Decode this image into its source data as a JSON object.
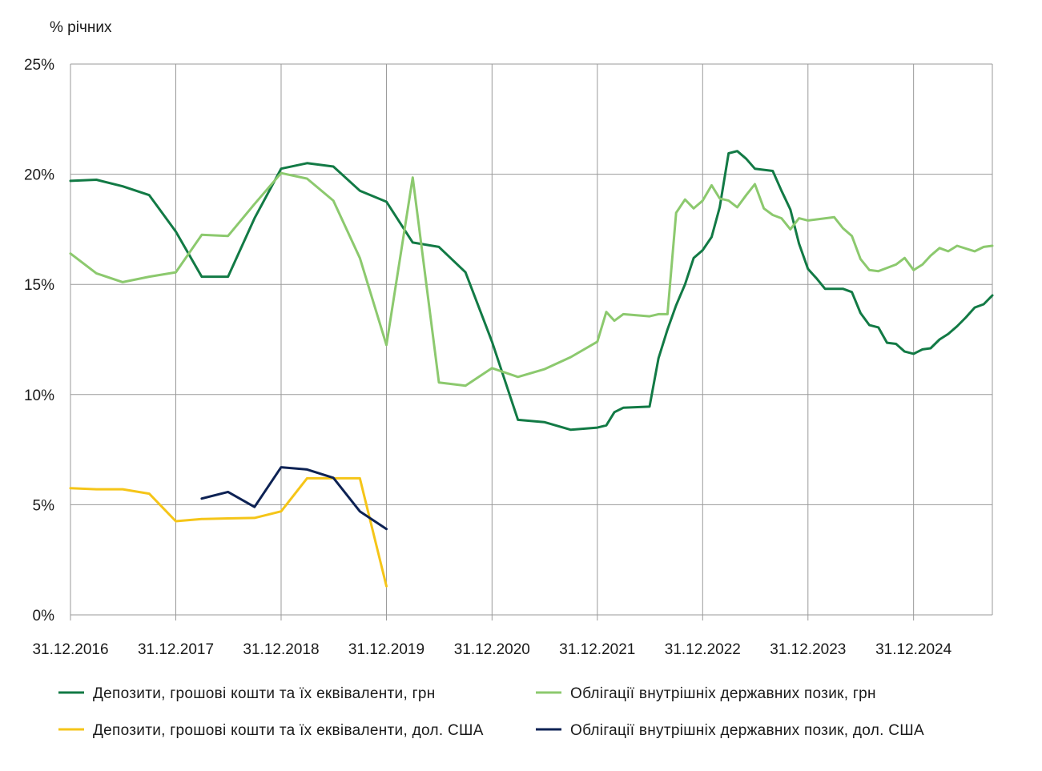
{
  "chart_data": {
    "type": "line",
    "ylabel": "% річних",
    "ylim": [
      0,
      25
    ],
    "xlim": [
      "31.12.2016",
      "30.09.2025"
    ],
    "grid": true,
    "legend": "bottom",
    "y_ticks": [
      "0%",
      "5%",
      "10%",
      "15%",
      "20%",
      "25%"
    ],
    "x_ticks": [
      "31.12.2016",
      "31.12.2017",
      "31.12.2018",
      "31.12.2019",
      "31.12.2020",
      "31.12.2021",
      "31.12.2022",
      "31.12.2023",
      "31.12.2024"
    ],
    "series": [
      {
        "name": "Депозити, грошові кошти та їх еквіваленти, грн",
        "color": "#127a45",
        "points": [
          [
            "31.12.2016",
            19.7
          ],
          [
            "31.03.2017",
            19.75
          ],
          [
            "30.06.2017",
            19.45
          ],
          [
            "30.09.2017",
            19.05
          ],
          [
            "31.12.2017",
            17.4
          ],
          [
            "31.03.2018",
            15.35
          ],
          [
            "30.06.2018",
            15.35
          ],
          [
            "30.09.2018",
            18.0
          ],
          [
            "31.12.2018",
            20.25
          ],
          [
            "31.03.2019",
            20.5
          ],
          [
            "30.06.2019",
            20.35
          ],
          [
            "30.09.2019",
            19.25
          ],
          [
            "31.12.2019",
            18.75
          ],
          [
            "31.03.2020",
            16.9
          ],
          [
            "30.06.2020",
            16.7
          ],
          [
            "30.09.2020",
            15.55
          ],
          [
            "31.12.2020",
            12.4
          ],
          [
            "31.03.2021",
            8.85
          ],
          [
            "30.06.2021",
            8.75
          ],
          [
            "30.09.2021",
            8.4
          ],
          [
            "31.12.2021",
            8.5
          ],
          [
            "31.01.2022",
            8.6
          ],
          [
            "28.02.2022",
            9.2
          ],
          [
            "31.03.2022",
            9.4
          ],
          [
            "30.06.2022",
            9.45
          ],
          [
            "31.07.2022",
            11.65
          ],
          [
            "31.08.2022",
            12.95
          ],
          [
            "30.09.2022",
            14.05
          ],
          [
            "31.10.2022",
            15.0
          ],
          [
            "30.11.2022",
            16.2
          ],
          [
            "31.12.2022",
            16.55
          ],
          [
            "31.01.2023",
            17.15
          ],
          [
            "28.02.2023",
            18.5
          ],
          [
            "31.03.2023",
            20.95
          ],
          [
            "30.04.2023",
            21.05
          ],
          [
            "31.05.2023",
            20.7
          ],
          [
            "30.06.2023",
            20.25
          ],
          [
            "31.08.2023",
            20.15
          ],
          [
            "30.09.2023",
            19.25
          ],
          [
            "31.10.2023",
            18.4
          ],
          [
            "30.11.2023",
            16.85
          ],
          [
            "31.12.2023",
            15.7
          ],
          [
            "31.01.2024",
            15.25
          ],
          [
            "28.02.2024",
            14.8
          ],
          [
            "31.03.2024",
            14.8
          ],
          [
            "30.04.2024",
            14.8
          ],
          [
            "31.05.2024",
            14.65
          ],
          [
            "30.06.2024",
            13.7
          ],
          [
            "31.07.2024",
            13.15
          ],
          [
            "31.08.2024",
            13.05
          ],
          [
            "30.09.2024",
            12.35
          ],
          [
            "31.10.2024",
            12.3
          ],
          [
            "30.11.2024",
            11.95
          ],
          [
            "31.12.2024",
            11.85
          ],
          [
            "31.01.2025",
            12.05
          ],
          [
            "28.02.2025",
            12.1
          ],
          [
            "31.03.2025",
            12.5
          ],
          [
            "30.04.2025",
            12.75
          ],
          [
            "31.05.2025",
            13.1
          ],
          [
            "30.06.2025",
            13.5
          ],
          [
            "31.07.2025",
            13.95
          ],
          [
            "31.08.2025",
            14.1
          ],
          [
            "30.09.2025",
            14.5
          ]
        ]
      },
      {
        "name": "Облігації внутрішніх державних позик, грн",
        "color": "#8cc96e",
        "points": [
          [
            "31.12.2016",
            16.4
          ],
          [
            "31.03.2017",
            15.5
          ],
          [
            "30.06.2017",
            15.1
          ],
          [
            "30.09.2017",
            15.35
          ],
          [
            "31.12.2017",
            15.55
          ],
          [
            "31.03.2018",
            17.25
          ],
          [
            "30.06.2018",
            17.2
          ],
          [
            "30.09.2018",
            18.65
          ],
          [
            "31.12.2018",
            20.05
          ],
          [
            "31.03.2019",
            19.8
          ],
          [
            "30.06.2019",
            18.8
          ],
          [
            "30.09.2019",
            16.2
          ],
          [
            "31.12.2019",
            12.25
          ],
          [
            "31.03.2020",
            19.85
          ],
          [
            "30.06.2020",
            10.55
          ],
          [
            "30.09.2020",
            10.4
          ],
          [
            "31.12.2020",
            11.2
          ],
          [
            "31.03.2021",
            10.8
          ],
          [
            "30.06.2021",
            11.15
          ],
          [
            "30.09.2021",
            11.7
          ],
          [
            "31.12.2021",
            12.4
          ],
          [
            "31.01.2022",
            13.75
          ],
          [
            "28.02.2022",
            13.35
          ],
          [
            "31.03.2022",
            13.65
          ],
          [
            "30.06.2022",
            13.55
          ],
          [
            "31.07.2022",
            13.65
          ],
          [
            "31.08.2022",
            13.65
          ],
          [
            "30.09.2022",
            18.25
          ],
          [
            "31.10.2022",
            18.85
          ],
          [
            "30.11.2022",
            18.45
          ],
          [
            "31.12.2022",
            18.8
          ],
          [
            "31.01.2023",
            19.5
          ],
          [
            "28.02.2023",
            18.9
          ],
          [
            "31.03.2023",
            18.8
          ],
          [
            "30.04.2023",
            18.5
          ],
          [
            "31.05.2023",
            19.05
          ],
          [
            "30.06.2023",
            19.55
          ],
          [
            "31.07.2023",
            18.45
          ],
          [
            "31.08.2023",
            18.15
          ],
          [
            "30.09.2023",
            18.0
          ],
          [
            "31.10.2023",
            17.5
          ],
          [
            "30.11.2023",
            18.0
          ],
          [
            "31.12.2023",
            17.9
          ],
          [
            "31.03.2024",
            18.05
          ],
          [
            "30.04.2024",
            17.55
          ],
          [
            "31.05.2024",
            17.2
          ],
          [
            "30.06.2024",
            16.15
          ],
          [
            "31.07.2024",
            15.65
          ],
          [
            "31.08.2024",
            15.6
          ],
          [
            "30.09.2024",
            15.75
          ],
          [
            "31.10.2024",
            15.9
          ],
          [
            "30.11.2024",
            16.2
          ],
          [
            "31.12.2024",
            15.65
          ],
          [
            "31.01.2025",
            15.9
          ],
          [
            "28.02.2025",
            16.3
          ],
          [
            "31.03.2025",
            16.65
          ],
          [
            "30.04.2025",
            16.5
          ],
          [
            "31.05.2025",
            16.75
          ],
          [
            "31.07.2025",
            16.5
          ],
          [
            "31.08.2025",
            16.7
          ],
          [
            "30.09.2025",
            16.75
          ]
        ]
      },
      {
        "name": "Депозити, грошові кошти та їх еквіваленти, дол. США",
        "color": "#f5c518",
        "points": [
          [
            "31.12.2016",
            5.75
          ],
          [
            "31.03.2017",
            5.7
          ],
          [
            "30.06.2017",
            5.7
          ],
          [
            "30.09.2017",
            5.5
          ],
          [
            "31.12.2017",
            4.25
          ],
          [
            "31.03.2018",
            4.35
          ],
          [
            "30.06.2018",
            4.38
          ],
          [
            "30.09.2018",
            4.4
          ],
          [
            "31.12.2018",
            4.7
          ],
          [
            "31.03.2019",
            6.2
          ],
          [
            "30.06.2019",
            6.2
          ],
          [
            "30.09.2019",
            6.2
          ],
          [
            "31.12.2019",
            1.3
          ]
        ]
      },
      {
        "name": "Облігації внутрішніх державних позик, дол. США",
        "color": "#0d2254",
        "points": [
          [
            "31.03.2018",
            5.28
          ],
          [
            "30.06.2018",
            5.58
          ],
          [
            "30.09.2018",
            4.9
          ],
          [
            "31.12.2018",
            6.7
          ],
          [
            "31.03.2019",
            6.6
          ],
          [
            "30.06.2019",
            6.22
          ],
          [
            "30.09.2019",
            4.7
          ],
          [
            "31.12.2019",
            3.9
          ]
        ]
      }
    ]
  }
}
